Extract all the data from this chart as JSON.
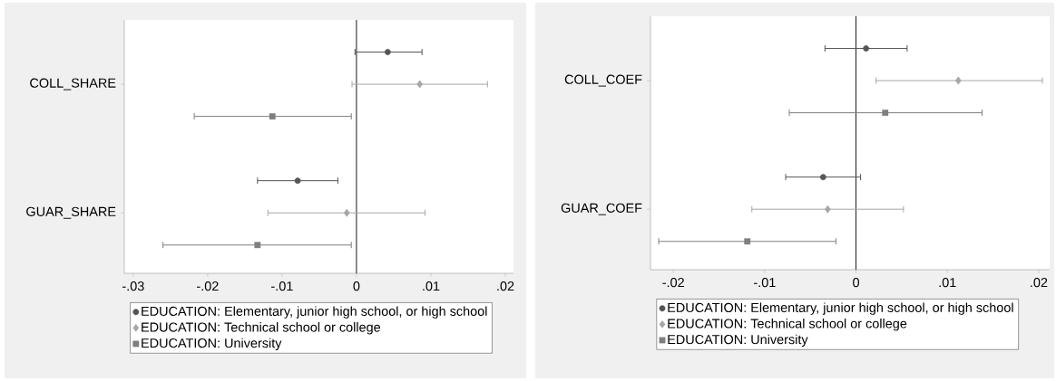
{
  "chart_data": [
    {
      "type": "scatter",
      "orientation": "horizontal",
      "categories": [
        "COLL_SHARE",
        "GUAR_SHARE"
      ],
      "xlim": [
        -0.0312,
        0.0211
      ],
      "xticks": [
        {
          "value": -0.03,
          "label": "-.03"
        },
        {
          "value": -0.02,
          "label": "-.02"
        },
        {
          "value": -0.01,
          "label": "-.01"
        },
        0,
        {
          "value": 0.01,
          "label": ".01"
        },
        {
          "value": 0.02,
          "label": ".02"
        }
      ],
      "legend": "bottom",
      "ref_lines": [
        {
          "axis": "x",
          "value": 0,
          "color": "#000000"
        }
      ],
      "series": [
        {
          "name": "EDUCATION: Elementary, junior high school, or high school",
          "color": "#555555",
          "marker": "circle",
          "values": [
            0.0042,
            -0.0079
          ],
          "errors": [
            [
              -0.0002,
              0.0088
            ],
            [
              -0.0133,
              -0.0025
            ]
          ]
        },
        {
          "name": "EDUCATION: Technical school or college",
          "color": "#a6a6a6",
          "marker": "diamond",
          "values": [
            0.0085,
            -0.0013
          ],
          "errors": [
            [
              -0.0006,
              0.0176
            ],
            [
              -0.0119,
              0.0092
            ]
          ]
        },
        {
          "name": "EDUCATION: University",
          "color": "#7f7f7f",
          "marker": "square",
          "values": [
            -0.0113,
            -0.0133
          ],
          "errors": [
            [
              -0.0218,
              -0.0007
            ],
            [
              -0.026,
              -0.0007
            ]
          ]
        }
      ]
    },
    {
      "type": "scatter",
      "orientation": "horizontal",
      "categories": [
        "COLL_COEF",
        "GUAR_COEF"
      ],
      "xlim": [
        -0.0225,
        0.0212
      ],
      "xticks": [
        {
          "value": -0.02,
          "label": "-.02"
        },
        {
          "value": -0.01,
          "label": "-.01"
        },
        0,
        {
          "value": 0.01,
          "label": ".01"
        },
        {
          "value": 0.02,
          "label": ".02"
        }
      ],
      "legend": "bottom",
      "ref_lines": [
        {
          "axis": "x",
          "value": 0,
          "color": "#000000"
        }
      ],
      "series": [
        {
          "name": "EDUCATION: Elementary, junior high school, or high school",
          "color": "#555555",
          "marker": "circle",
          "values": [
            0.0011,
            -0.0036
          ],
          "errors": [
            [
              -0.0034,
              0.0056
            ],
            [
              -0.0077,
              0.0005
            ]
          ]
        },
        {
          "name": "EDUCATION: Technical school or college",
          "color": "#a6a6a6",
          "marker": "diamond",
          "values": [
            0.0112,
            -0.0031
          ],
          "errors": [
            [
              0.0022,
              0.0204
            ],
            [
              -0.0114,
              0.0052
            ]
          ]
        },
        {
          "name": "EDUCATION: University",
          "color": "#7f7f7f",
          "marker": "square",
          "values": [
            0.0032,
            -0.0119
          ],
          "errors": [
            [
              -0.0073,
              0.0138
            ],
            [
              -0.0216,
              -0.0022
            ]
          ]
        }
      ]
    }
  ]
}
